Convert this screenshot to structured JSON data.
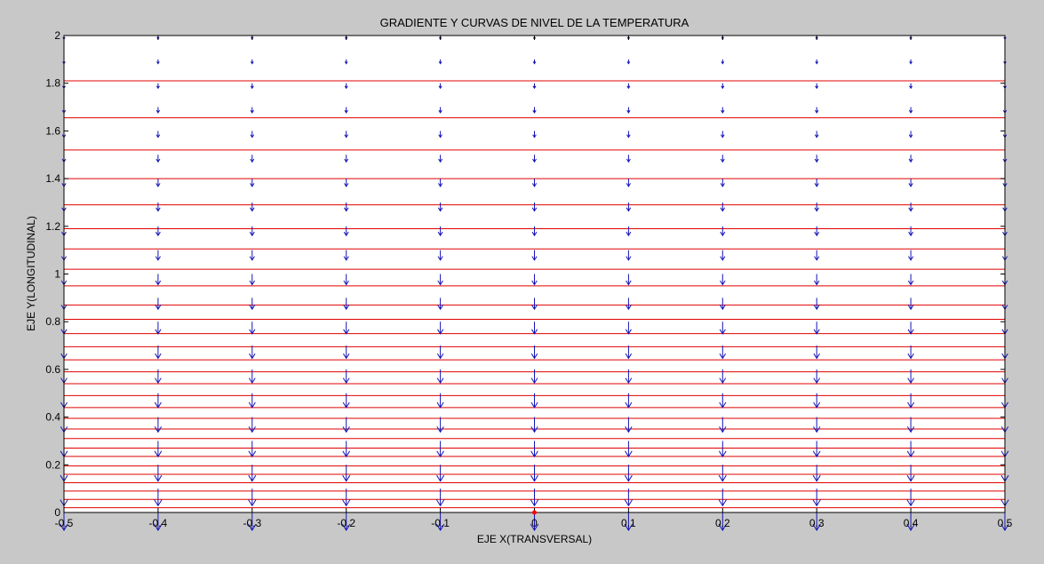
{
  "chart_data": {
    "type": "quiver+contour",
    "title": "GRADIENTE Y CURVAS DE NIVEL DE LA TEMPERATURA",
    "xlabel": "EJE X(TRANSVERSAL)",
    "ylabel": "EJE Y(LONGITUDINAL)",
    "xlim": [
      -0.5,
      0.5
    ],
    "ylim": [
      0,
      2
    ],
    "xticks": [
      -0.5,
      -0.4,
      -0.3,
      -0.2,
      -0.1,
      0,
      0.1,
      0.2,
      0.3,
      0.4,
      0.5
    ],
    "xtick_labels": [
      "-0.5",
      "-0.4",
      "-0.3",
      "-0.2",
      "-0.1",
      "0",
      "0.1",
      "0.2",
      "0.3",
      "0.4",
      "0.5"
    ],
    "yticks": [
      0,
      0.2,
      0.4,
      0.6,
      0.8,
      1,
      1.2,
      1.4,
      1.6,
      1.8,
      2
    ],
    "ytick_labels": [
      "0",
      "0.2",
      "0.4",
      "0.6",
      "0.8",
      "1",
      "1.2",
      "1.4",
      "1.6",
      "1.8",
      "2"
    ],
    "contour_color": "#e00000",
    "contour_levels_y": [
      0.02,
      0.055,
      0.09,
      0.125,
      0.16,
      0.195,
      0.235,
      0.27,
      0.31,
      0.35,
      0.395,
      0.44,
      0.49,
      0.54,
      0.59,
      0.64,
      0.695,
      0.75,
      0.81,
      0.87,
      0.95,
      1.02,
      1.105,
      1.19,
      1.29,
      1.4,
      1.52,
      1.655,
      1.81
    ],
    "quiver_color": "#1515b5",
    "quiver_x": [
      -0.5,
      -0.4,
      -0.3,
      -0.2,
      -0.1,
      0,
      0.1,
      0.2,
      0.3,
      0.4,
      0.5
    ],
    "quiver_y": [
      0,
      0.1,
      0.2,
      0.3,
      0.4,
      0.5,
      0.6,
      0.7,
      0.8,
      0.9,
      1.0,
      1.1,
      1.2,
      1.3,
      1.4,
      1.5,
      1.6,
      1.7,
      1.8,
      1.9,
      2.0
    ],
    "quiver_direction": "negative-y",
    "quiver_magnitude_rule": "decreasing-with-y",
    "marker": {
      "x": 0,
      "y": 0,
      "color": "#ff0000"
    }
  }
}
